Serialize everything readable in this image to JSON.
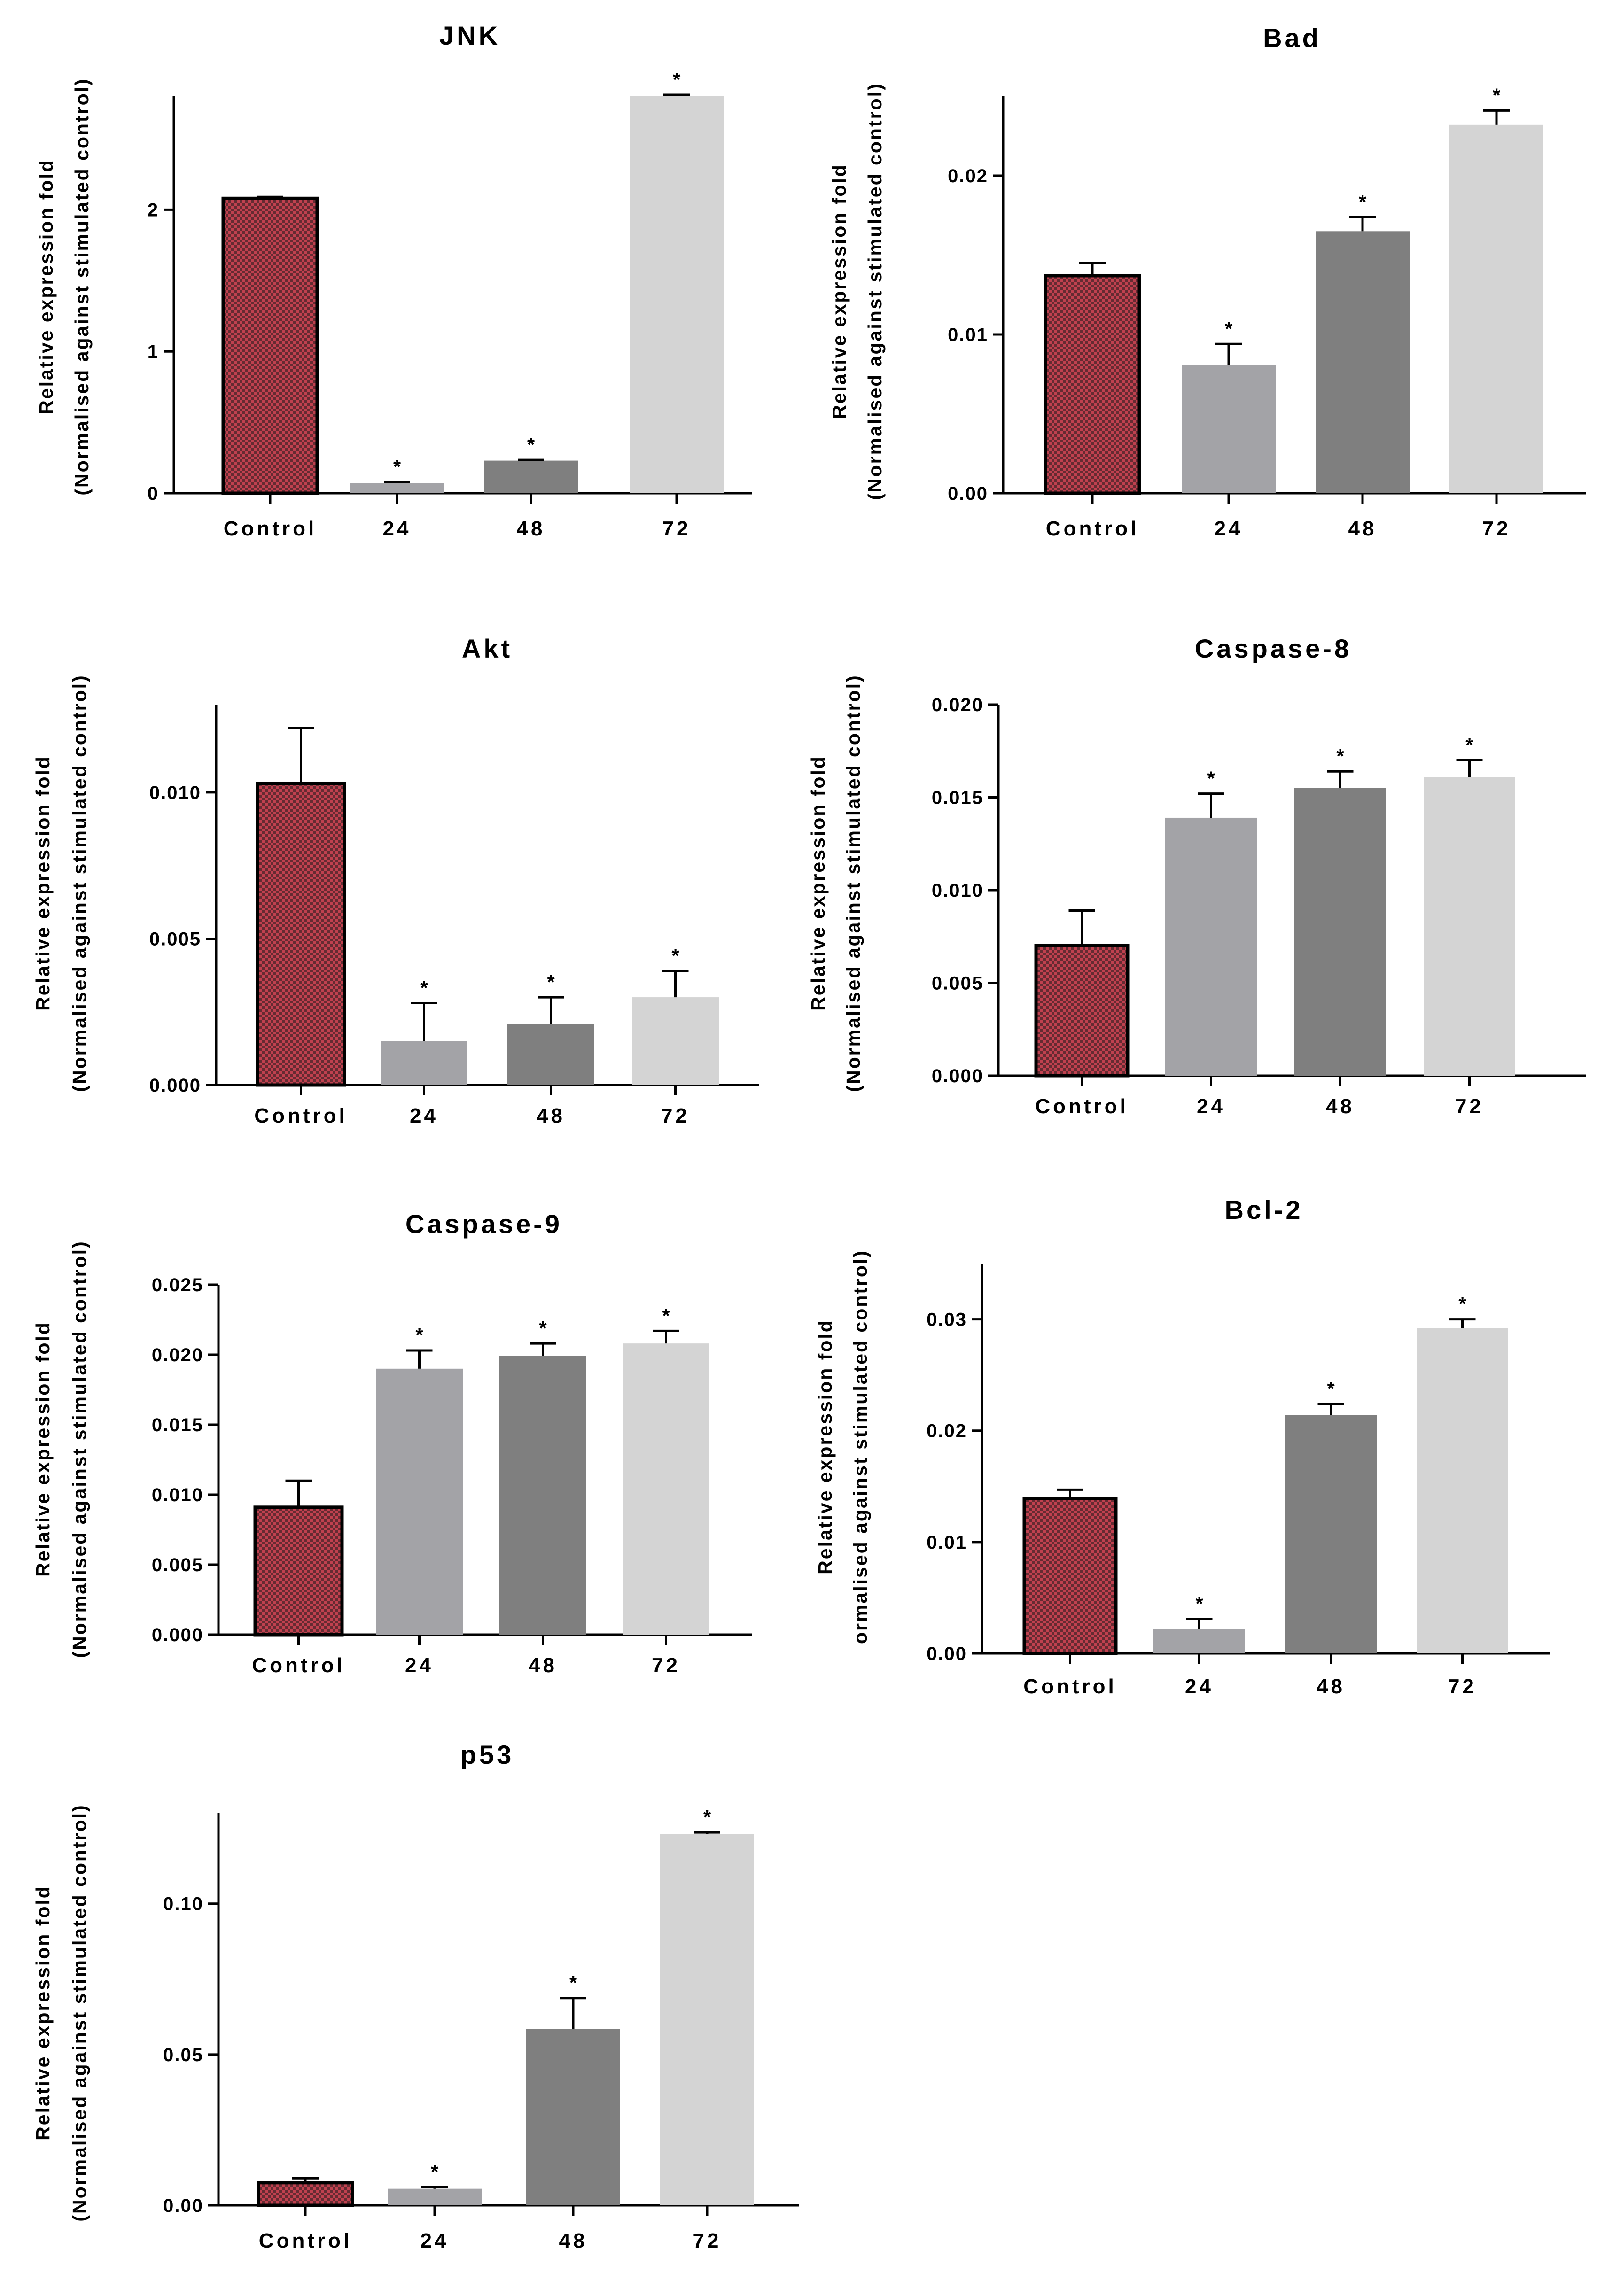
{
  "colors": {
    "control_fill": "#c0414f",
    "control_check": "#1a1a1a",
    "bar_24": "#a3a3a7",
    "bar_48": "#7f7f7f",
    "bar_72": "#d4d4d4",
    "axis": "#000000"
  },
  "chart_data": [
    {
      "type": "bar",
      "title": "JNK",
      "ylabel_lines": [
        "Relative expression fold",
        "(Normalised against stimulated control)"
      ],
      "categories": [
        "Control",
        "24",
        "48",
        "72"
      ],
      "values": [
        2.08,
        0.07,
        0.23,
        2.8
      ],
      "errors": [
        0.01,
        0.01,
        0.005,
        0.01
      ],
      "significant": [
        false,
        true,
        true,
        true
      ],
      "ylim": [
        0,
        2.8
      ],
      "yticks": [
        0,
        1,
        2
      ],
      "ytick_labels": [
        "0",
        "1",
        "2"
      ]
    },
    {
      "type": "bar",
      "title": "Bad",
      "ylabel_lines": [
        "Relative expression fold",
        "(Normalised against stimulated control)"
      ],
      "categories": [
        "Control",
        "24",
        "48",
        "72"
      ],
      "values": [
        0.0137,
        0.0081,
        0.0165,
        0.0232
      ],
      "errors": [
        0.0008,
        0.0013,
        0.0009,
        0.0009
      ],
      "significant": [
        false,
        true,
        true,
        true
      ],
      "ylim": [
        0,
        0.025
      ],
      "yticks": [
        0,
        0.01,
        0.02
      ],
      "ytick_labels": [
        "0.00",
        "0.01",
        "0.02"
      ]
    },
    {
      "type": "bar",
      "title": "Akt",
      "ylabel_lines": [
        "Relative expression fold",
        "(Normalised against stimulated control)"
      ],
      "categories": [
        "Control",
        "24",
        "48",
        "72"
      ],
      "values": [
        0.0103,
        0.0015,
        0.0021,
        0.003
      ],
      "errors": [
        0.0019,
        0.0013,
        0.0009,
        0.0009
      ],
      "significant": [
        false,
        true,
        true,
        true
      ],
      "ylim": [
        0,
        0.013
      ],
      "yticks": [
        0,
        0.005,
        0.01
      ],
      "ytick_labels": [
        "0.000",
        "0.005",
        "0.010"
      ]
    },
    {
      "type": "bar",
      "title": "Caspase-8",
      "ylabel_lines": [
        "Relative expression fold",
        "(Normalised against stimulated control)"
      ],
      "categories": [
        "Control",
        "24",
        "48",
        "72"
      ],
      "values": [
        0.007,
        0.0139,
        0.0155,
        0.0161
      ],
      "errors": [
        0.0019,
        0.0013,
        0.0009,
        0.0009
      ],
      "significant": [
        false,
        true,
        true,
        true
      ],
      "ylim": [
        0,
        0.02
      ],
      "yticks": [
        0,
        0.005,
        0.01,
        0.015,
        0.02
      ],
      "ytick_labels": [
        "0.000",
        "0.005",
        "0.010",
        "0.015",
        "0.020"
      ]
    },
    {
      "type": "bar",
      "title": "Caspase-9",
      "ylabel_lines": [
        "Relative expression fold",
        "(Normalised against stimulated control)"
      ],
      "categories": [
        "Control",
        "24",
        "48",
        "72"
      ],
      "values": [
        0.0091,
        0.019,
        0.0199,
        0.0208
      ],
      "errors": [
        0.0019,
        0.0013,
        0.0009,
        0.0009
      ],
      "significant": [
        false,
        true,
        true,
        true
      ],
      "ylim": [
        0,
        0.025
      ],
      "yticks": [
        0,
        0.005,
        0.01,
        0.015,
        0.02,
        0.025
      ],
      "ytick_labels": [
        "0.000",
        "0.005",
        "0.010",
        "0.015",
        "0.020",
        "0.025"
      ]
    },
    {
      "type": "bar",
      "title": "Bcl-2",
      "ylabel_lines": [
        "Relative expression fold",
        "ormalised against stimulated control)"
      ],
      "categories": [
        "Control",
        "24",
        "48",
        "72"
      ],
      "values": [
        0.0139,
        0.0022,
        0.0214,
        0.0292
      ],
      "errors": [
        0.0008,
        0.0009,
        0.001,
        0.0008
      ],
      "significant": [
        false,
        true,
        true,
        true
      ],
      "ylim": [
        0,
        0.035
      ],
      "yticks": [
        0,
        0.01,
        0.02,
        0.03
      ],
      "ytick_labels": [
        "0.00",
        "0.01",
        "0.02",
        "0.03"
      ]
    },
    {
      "type": "bar",
      "title": "p53",
      "ylabel_lines": [
        "Relative expression fold",
        "(Normalised against stimulated control)"
      ],
      "categories": [
        "Control",
        "24",
        "48",
        "72"
      ],
      "values": [
        0.0075,
        0.0055,
        0.0585,
        0.123
      ],
      "errors": [
        0.0015,
        0.0006,
        0.0102,
        0.0006
      ],
      "significant": [
        false,
        true,
        true,
        true
      ],
      "ylim": [
        0,
        0.13
      ],
      "yticks": [
        0,
        0.05,
        0.1
      ],
      "ytick_labels": [
        "0.00",
        "0.05",
        "0.10"
      ]
    }
  ]
}
